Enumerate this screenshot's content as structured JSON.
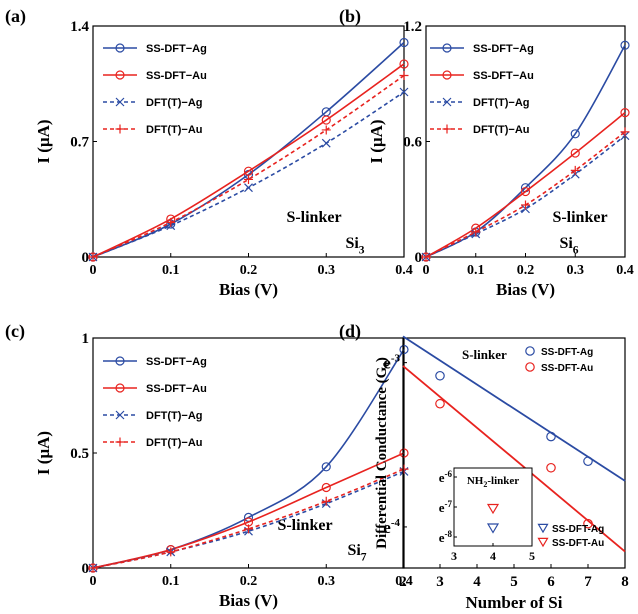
{
  "colors": {
    "ag": "#2b4ba3",
    "au": "#e8231f",
    "axis": "#000000"
  },
  "chart_data": [
    {
      "type": "line",
      "panel_label": "(a)",
      "xlabel": "Bias (V)",
      "ylabel": "I (μA)",
      "xlim": [
        0,
        0.4
      ],
      "ylim": [
        0,
        1.4
      ],
      "xticks": [
        "0",
        "0.1",
        "0.2",
        "0.3",
        "0.4"
      ],
      "yticks": [
        "0",
        "0.7",
        "1.4"
      ],
      "annotation": "S-linker",
      "annotation_base": "Si",
      "annotation_sub": "3",
      "x": [
        0,
        0.1,
        0.2,
        0.3,
        0.4
      ],
      "series": [
        {
          "name": "SS-DFT−Ag",
          "values": [
            0,
            0.2,
            0.5,
            0.88,
            1.3
          ]
        },
        {
          "name": "SS-DFT−Au",
          "values": [
            0,
            0.23,
            0.52,
            0.83,
            1.17
          ]
        },
        {
          "name": "DFT(T)−Ag",
          "values": [
            0,
            0.19,
            0.42,
            0.69,
            1.0
          ]
        },
        {
          "name": "DFT(T)−Au",
          "values": [
            0,
            0.21,
            0.47,
            0.77,
            1.1
          ]
        }
      ]
    },
    {
      "type": "line",
      "panel_label": "(b)",
      "xlabel": "Bias (V)",
      "ylabel": "I (μA)",
      "xlim": [
        0,
        0.4
      ],
      "ylim": [
        0,
        1.2
      ],
      "xticks": [
        "0",
        "0.1",
        "0.2",
        "0.3",
        "0.4"
      ],
      "yticks": [
        "0",
        "0.6",
        "1.2"
      ],
      "annotation": "S-linker",
      "annotation_base": "Si",
      "annotation_sub": "6",
      "x": [
        0,
        0.1,
        0.2,
        0.3,
        0.4
      ],
      "series": [
        {
          "name": "SS-DFT−Ag",
          "values": [
            0,
            0.13,
            0.36,
            0.64,
            1.1
          ]
        },
        {
          "name": "SS-DFT−Au",
          "values": [
            0,
            0.15,
            0.34,
            0.54,
            0.75
          ]
        },
        {
          "name": "DFT(T)−Ag",
          "values": [
            0,
            0.12,
            0.25,
            0.43,
            0.63
          ]
        },
        {
          "name": "DFT(T)−Au",
          "values": [
            0,
            0.13,
            0.27,
            0.45,
            0.65
          ]
        }
      ]
    },
    {
      "type": "line",
      "panel_label": "(c)",
      "xlabel": "Bias (V)",
      "ylabel": "I (μA)",
      "xlim": [
        0,
        0.4
      ],
      "ylim": [
        0,
        1.0
      ],
      "xticks": [
        "0",
        "0.1",
        "0.2",
        "0.3",
        "0.4"
      ],
      "yticks": [
        "0",
        "0.5",
        "1"
      ],
      "annotation": "S-linker",
      "annotation_base": "Si",
      "annotation_sub": "7",
      "x": [
        0,
        0.1,
        0.2,
        0.3,
        0.4
      ],
      "series": [
        {
          "name": "SS-DFT−Ag",
          "values": [
            0,
            0.08,
            0.22,
            0.44,
            0.95
          ]
        },
        {
          "name": "SS-DFT−Au",
          "values": [
            0,
            0.08,
            0.2,
            0.35,
            0.5
          ]
        },
        {
          "name": "DFT(T)−Ag",
          "values": [
            0,
            0.07,
            0.16,
            0.28,
            0.42
          ]
        },
        {
          "name": "DFT(T)−Au",
          "values": [
            0,
            0.07,
            0.17,
            0.29,
            0.43
          ]
        }
      ]
    },
    {
      "type": "scatter",
      "panel_label": "(d)",
      "xlabel": "Number of Si",
      "ylabel": "Differential Conductance (G₀)",
      "xlim": [
        2,
        8
      ],
      "ylim_log10": [
        -4.25,
        -2.85
      ],
      "xticks": [
        "2",
        "3",
        "4",
        "5",
        "6",
        "7",
        "8"
      ],
      "yticks": [
        {
          "base": "e",
          "exp": "-3",
          "log10": -3
        },
        {
          "base": "e",
          "exp": "-4",
          "log10": -4
        }
      ],
      "annotation": "S-linker",
      "series": [
        {
          "name": "SS-DFT-Ag",
          "points": [
            [
              3,
              -3.08
            ],
            [
              6,
              -3.45
            ],
            [
              7,
              -3.6
            ]
          ],
          "fit": [
            [
              2,
              -2.84
            ],
            [
              8,
              -3.72
            ]
          ]
        },
        {
          "name": "SS-DFT-Au",
          "points": [
            [
              3,
              -3.25
            ],
            [
              6,
              -3.64
            ],
            [
              7,
              -3.98
            ]
          ],
          "fit": [
            [
              2,
              -3.02
            ],
            [
              8,
              -4.15
            ]
          ]
        }
      ],
      "inset": {
        "title": "NH₂-linker",
        "title_base": "NH",
        "title_sub": "2",
        "title_rest": "-linker",
        "xlim": [
          3,
          5
        ],
        "ylim_log10": [
          -8.3,
          -5.7
        ],
        "xticks": [
          "3",
          "4",
          "5"
        ],
        "yticks": [
          {
            "base": "e",
            "exp": "-6",
            "log10": -6
          },
          {
            "base": "e",
            "exp": "-7",
            "log10": -7
          },
          {
            "base": "e",
            "exp": "-8",
            "log10": -8
          }
        ],
        "series": [
          {
            "name": "SS-DFT-Ag",
            "points": [
              [
                4,
                -7.7
              ]
            ]
          },
          {
            "name": "SS-DFT-Au",
            "points": [
              [
                4,
                -7.05
              ]
            ]
          }
        ]
      }
    }
  ]
}
